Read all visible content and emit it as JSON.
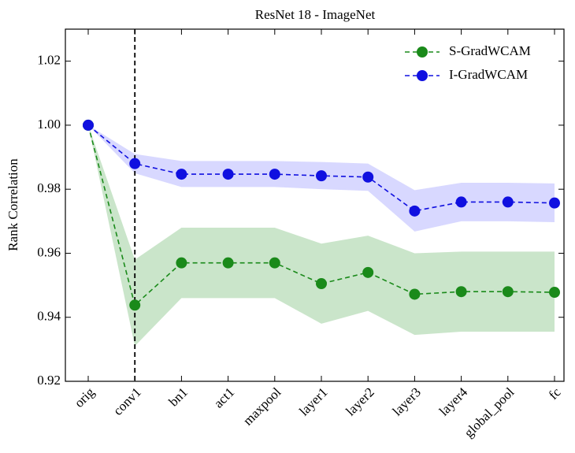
{
  "chart_data": {
    "type": "line",
    "title": "ResNet 18 - ImageNet",
    "y_label": "Rank Correlation",
    "categories": [
      "orig",
      "conv1",
      "bn1",
      "act1",
      "maxpool",
      "layer1",
      "layer2",
      "layer3",
      "layer4",
      "global_pool",
      "fc"
    ],
    "series": [
      {
        "name": "S-GradWCAM",
        "color": "#1a8a1a",
        "band_color": "#9fd09f",
        "values": [
          1.0,
          0.9438,
          0.957,
          0.957,
          0.957,
          0.9505,
          0.954,
          0.9472,
          0.948,
          0.948,
          0.9478
        ],
        "lower": [
          1.0,
          0.931,
          0.946,
          0.946,
          0.946,
          0.938,
          0.942,
          0.9345,
          0.9355,
          0.9355,
          0.9355
        ],
        "upper": [
          1.0,
          0.958,
          0.968,
          0.968,
          0.968,
          0.963,
          0.9655,
          0.96,
          0.9605,
          0.9605,
          0.9605
        ]
      },
      {
        "name": "I-GradWCAM",
        "color": "#1010e0",
        "band_color": "#b8b8ff",
        "values": [
          1.0,
          0.988,
          0.9847,
          0.9847,
          0.9847,
          0.9842,
          0.9838,
          0.9732,
          0.976,
          0.976,
          0.9757
        ],
        "lower": [
          1.0,
          0.985,
          0.9807,
          0.9807,
          0.9807,
          0.98,
          0.9795,
          0.9668,
          0.97,
          0.97,
          0.9697
        ],
        "upper": [
          1.0,
          0.991,
          0.9888,
          0.9888,
          0.9888,
          0.9885,
          0.988,
          0.9797,
          0.982,
          0.982,
          0.9818
        ]
      }
    ],
    "ylim": [
      0.92,
      1.03
    ],
    "yticks": [
      0.92,
      0.94,
      0.96,
      0.98,
      {
        "value": 1.0,
        "label": "1.00"
      },
      1.02
    ],
    "vline_index": 1,
    "legend": "upper right"
  }
}
